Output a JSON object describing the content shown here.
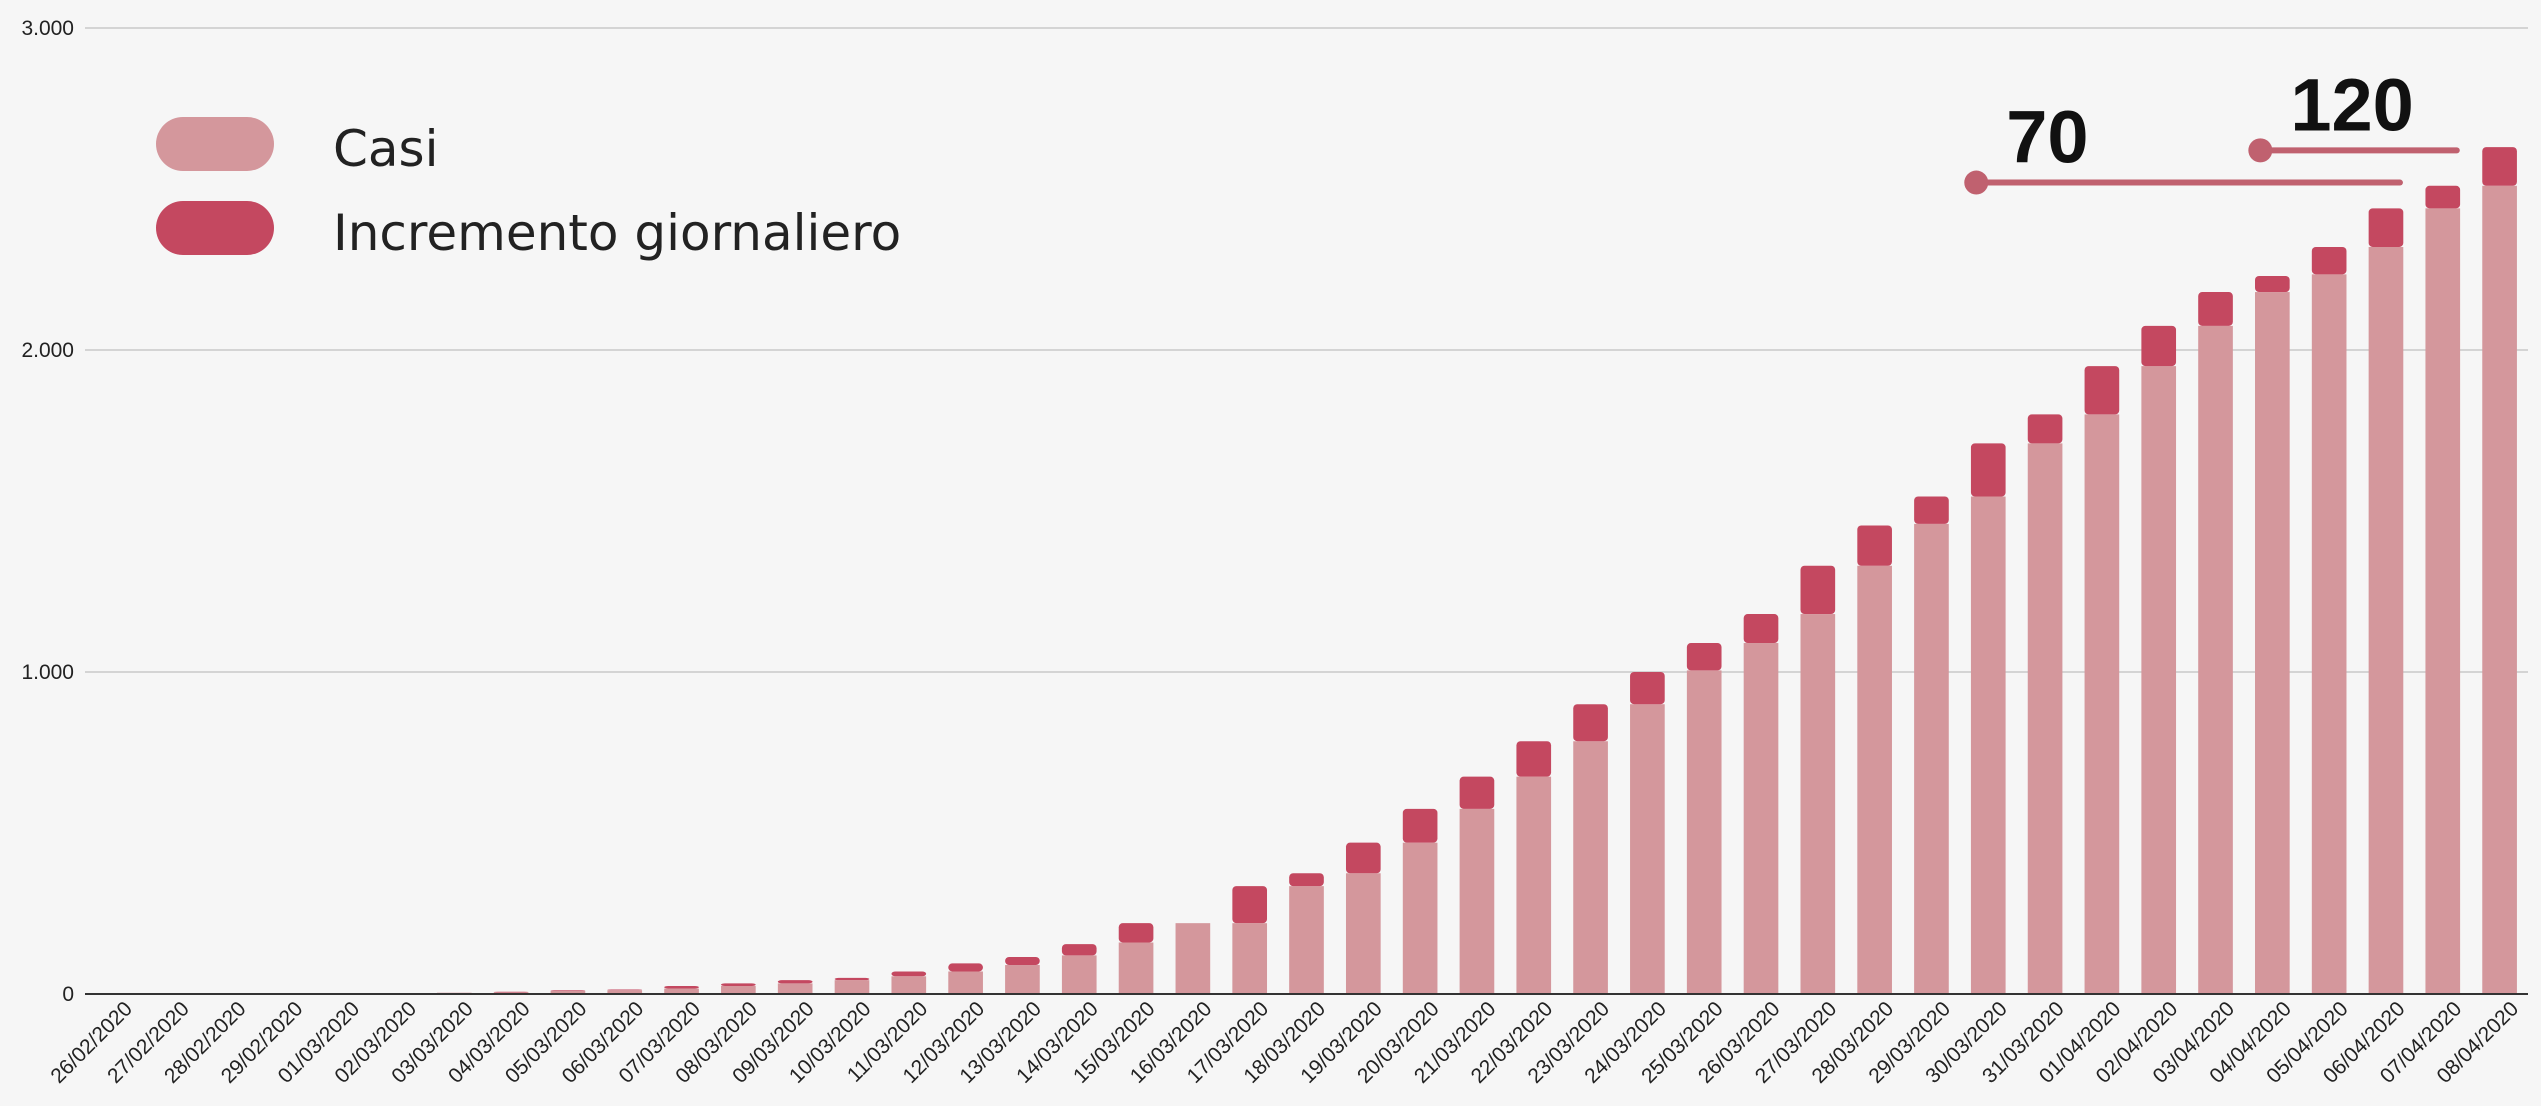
{
  "colors": {
    "casi": "#d4979c",
    "incremento": "#c44860",
    "annotation": "#c0616f",
    "grid": "#d4d4d4",
    "axis": "#333333",
    "background": "#f6f6f6"
  },
  "legend": {
    "items": [
      {
        "label": "Casi",
        "color": "#d4979c"
      },
      {
        "label": "Incremento giornaliero",
        "color": "#c44860"
      }
    ]
  },
  "annotations": [
    {
      "label": "70",
      "from": "30/03/2020",
      "to": "06/04/2020",
      "y": 2520
    },
    {
      "label": "120",
      "from": "04/04/2020",
      "to": "07/04/2020",
      "y": 2620
    }
  ],
  "chart_data": {
    "type": "bar",
    "stacked": true,
    "categories": [
      "26/02/2020",
      "27/02/2020",
      "28/02/2020",
      "29/02/2020",
      "01/03/2020",
      "02/03/2020",
      "03/03/2020",
      "04/03/2020",
      "05/03/2020",
      "06/03/2020",
      "07/03/2020",
      "08/03/2020",
      "09/03/2020",
      "10/03/2020",
      "11/03/2020",
      "12/03/2020",
      "13/03/2020",
      "14/03/2020",
      "15/03/2020",
      "16/03/2020",
      "17/03/2020",
      "18/03/2020",
      "19/03/2020",
      "20/03/2020",
      "21/03/2020",
      "22/03/2020",
      "23/03/2020",
      "24/03/2020",
      "25/03/2020",
      "26/03/2020",
      "27/03/2020",
      "28/03/2020",
      "29/03/2020",
      "30/03/2020",
      "31/03/2020",
      "01/04/2020",
      "02/04/2020",
      "03/04/2020",
      "04/04/2020",
      "05/04/2020",
      "06/04/2020",
      "07/04/2020",
      "08/04/2020"
    ],
    "series": [
      {
        "name": "Casi",
        "values": [
          1,
          1,
          3,
          3,
          3,
          3,
          4,
          5,
          10,
          12,
          17,
          25,
          33,
          43,
          55,
          70,
          90,
          120,
          160,
          220,
          220,
          335,
          375,
          470,
          575,
          675,
          785,
          900,
          1005,
          1090,
          1180,
          1330,
          1460,
          1545,
          1710,
          1800,
          1950,
          2075,
          2180,
          2235,
          2320,
          2440,
          2510
        ]
      },
      {
        "name": "Incremento giornaliero",
        "values": [
          0,
          0,
          0,
          0,
          0,
          0,
          0,
          2,
          2,
          2,
          8,
          8,
          10,
          7,
          15,
          25,
          25,
          35,
          60,
          0,
          115,
          40,
          95,
          105,
          100,
          110,
          115,
          100,
          85,
          90,
          150,
          125,
          85,
          165,
          90,
          150,
          125,
          105,
          50,
          85,
          120,
          70,
          120
        ]
      }
    ],
    "ylim": [
      0,
      3000
    ],
    "yticks": [
      {
        "value": 0,
        "label": "0"
      },
      {
        "value": 1000,
        "label": "1.000"
      },
      {
        "value": 2000,
        "label": "2.000"
      },
      {
        "value": 3000,
        "label": "3.000"
      }
    ],
    "grid": true,
    "legend_position": "top-left"
  }
}
